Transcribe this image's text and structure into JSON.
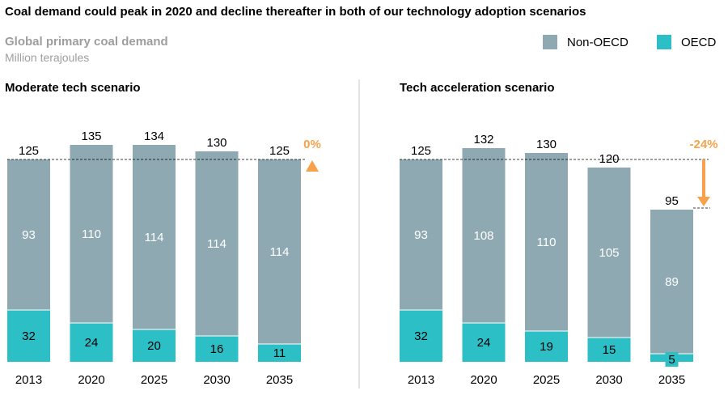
{
  "title": "Coal demand could peak in 2020 and decline thereafter in both of our technology adoption scenarios",
  "subtitle": "Global primary coal demand",
  "units": "Million terajoules",
  "legend": [
    {
      "label": "Non-OECD",
      "color": "#8fa9b2"
    },
    {
      "label": "OECD",
      "color": "#2dbfc6"
    }
  ],
  "colors": {
    "non_oecd": "#8fa9b2",
    "oecd": "#2dbfc6",
    "accent": "#f7a24a"
  },
  "chart_data": [
    {
      "type": "bar",
      "stacked": true,
      "title": "Moderate tech scenario",
      "categories": [
        "2013",
        "2020",
        "2025",
        "2030",
        "2035"
      ],
      "series": [
        {
          "name": "OECD",
          "values": [
            32,
            24,
            20,
            16,
            11
          ]
        },
        {
          "name": "Non-OECD",
          "values": [
            93,
            110,
            114,
            114,
            114
          ]
        }
      ],
      "totals": [
        125,
        135,
        134,
        130,
        125
      ],
      "total_labels": [
        "125",
        "135",
        "134",
        "130",
        "125"
      ],
      "oecd_labels": [
        "32",
        "24",
        "20",
        "16",
        "11"
      ],
      "non_oecd_labels": [
        "93",
        "110",
        "114",
        "114",
        "114"
      ],
      "reference_value": 125,
      "change_label": "0%",
      "change_direction": "up",
      "ylim": [
        0,
        140
      ]
    },
    {
      "type": "bar",
      "stacked": true,
      "title": "Tech acceleration scenario",
      "categories": [
        "2013",
        "2020",
        "2025",
        "2030",
        "2035"
      ],
      "series": [
        {
          "name": "OECD",
          "values": [
            32,
            24,
            19,
            15,
            5
          ]
        },
        {
          "name": "Non-OECD",
          "values": [
            93,
            108,
            110,
            105,
            89
          ]
        }
      ],
      "totals": [
        125,
        132,
        130,
        120,
        95
      ],
      "total_labels": [
        "125",
        "132",
        "130",
        "120",
        "95"
      ],
      "oecd_labels": [
        "32",
        "24",
        "19",
        "15",
        "5"
      ],
      "non_oecd_labels": [
        "93",
        "108",
        "110",
        "105",
        "89"
      ],
      "reference_value": 125,
      "change_label": "-24%",
      "change_direction": "down",
      "ylim": [
        0,
        140
      ]
    }
  ]
}
